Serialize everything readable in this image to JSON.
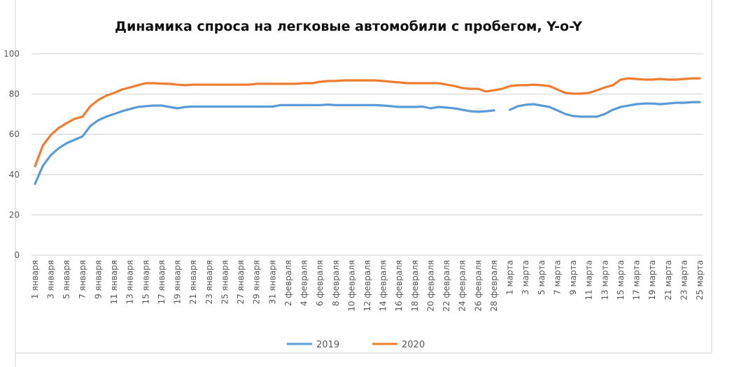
{
  "chart_data": {
    "type": "line",
    "title": "Динамика спроса на легковые автомобили с пробегом, Y-o-Y",
    "xlabel": "",
    "ylabel": "",
    "ylim": [
      0,
      100
    ],
    "y_ticks": [
      "0",
      "20",
      "40",
      "60",
      "80",
      "100"
    ],
    "grid": true,
    "legend_position": "bottom",
    "tick_labels": [
      "1 января",
      "3 января",
      "5 января",
      "7 января",
      "9 января",
      "11 января",
      "13 января",
      "15 января",
      "17 января",
      "19 января",
      "21 января",
      "23 января",
      "25 января",
      "27 января",
      "29 января",
      "31 января",
      "2 февраля",
      "4 февраля",
      "6 февраля",
      "8 февраля",
      "10 февраля",
      "12 февраля",
      "14 февраля",
      "16 февраля",
      "18 февраля",
      "20 февраля",
      "22 февраля",
      "24 февраля",
      "26 февраля",
      "28 февраля",
      "1 марта",
      "3 марта",
      "5 марта",
      "7 марта",
      "9 марта",
      "11 марта",
      "13 марта",
      "15 марта",
      "17 марта",
      "19 марта",
      "21 марта",
      "23 марта",
      "25 марта"
    ],
    "series": [
      {
        "name": "2019",
        "color": "#5B9BD5",
        "values": [
          35.4,
          44.4,
          49.7,
          53.1,
          55.6,
          57.3,
          59.0,
          64.2,
          67.0,
          68.8,
          70.1,
          71.5,
          72.6,
          73.6,
          74.0,
          74.3,
          74.3,
          73.6,
          72.9,
          73.6,
          73.8,
          73.8,
          73.8,
          73.8,
          73.8,
          73.8,
          73.8,
          73.8,
          73.8,
          73.8,
          73.8,
          74.5,
          74.5,
          74.5,
          74.5,
          74.5,
          74.5,
          74.8,
          74.5,
          74.5,
          74.5,
          74.5,
          74.5,
          74.5,
          74.3,
          74.0,
          73.6,
          73.6,
          73.6,
          73.8,
          72.9,
          73.6,
          73.3,
          72.9,
          72.2,
          71.5,
          71.2,
          71.5,
          71.9,
          null,
          72.2,
          74.0,
          74.7,
          75.0,
          74.3,
          73.6,
          71.9,
          70.1,
          69.1,
          68.8,
          68.8,
          68.8,
          70.1,
          72.2,
          73.6,
          74.3,
          75.0,
          75.3,
          75.3,
          75.0,
          75.3,
          75.7,
          75.7,
          76.0,
          76.0
        ]
      },
      {
        "name": "2020",
        "color": "#ED7D31",
        "values": [
          44.1,
          54.5,
          59.7,
          63.2,
          65.6,
          67.7,
          68.8,
          74.0,
          77.1,
          79.2,
          80.6,
          82.3,
          83.3,
          84.4,
          85.4,
          85.4,
          85.2,
          85.1,
          84.7,
          84.4,
          84.7,
          84.7,
          84.7,
          84.7,
          84.7,
          84.7,
          84.7,
          84.7,
          85.1,
          85.1,
          85.1,
          85.1,
          85.1,
          85.1,
          85.4,
          85.4,
          86.1,
          86.5,
          86.5,
          86.8,
          86.8,
          86.8,
          86.8,
          86.8,
          86.5,
          86.1,
          85.8,
          85.4,
          85.4,
          85.4,
          85.4,
          85.4,
          84.7,
          84.0,
          83.0,
          82.6,
          82.6,
          81.3,
          81.9,
          82.6,
          84.0,
          84.4,
          84.4,
          84.7,
          84.4,
          84.0,
          82.3,
          80.6,
          80.2,
          80.2,
          80.6,
          81.9,
          83.3,
          84.4,
          87.2,
          87.8,
          87.5,
          87.2,
          87.2,
          87.5,
          87.2,
          87.2,
          87.5,
          87.8,
          87.8
        ]
      }
    ]
  }
}
